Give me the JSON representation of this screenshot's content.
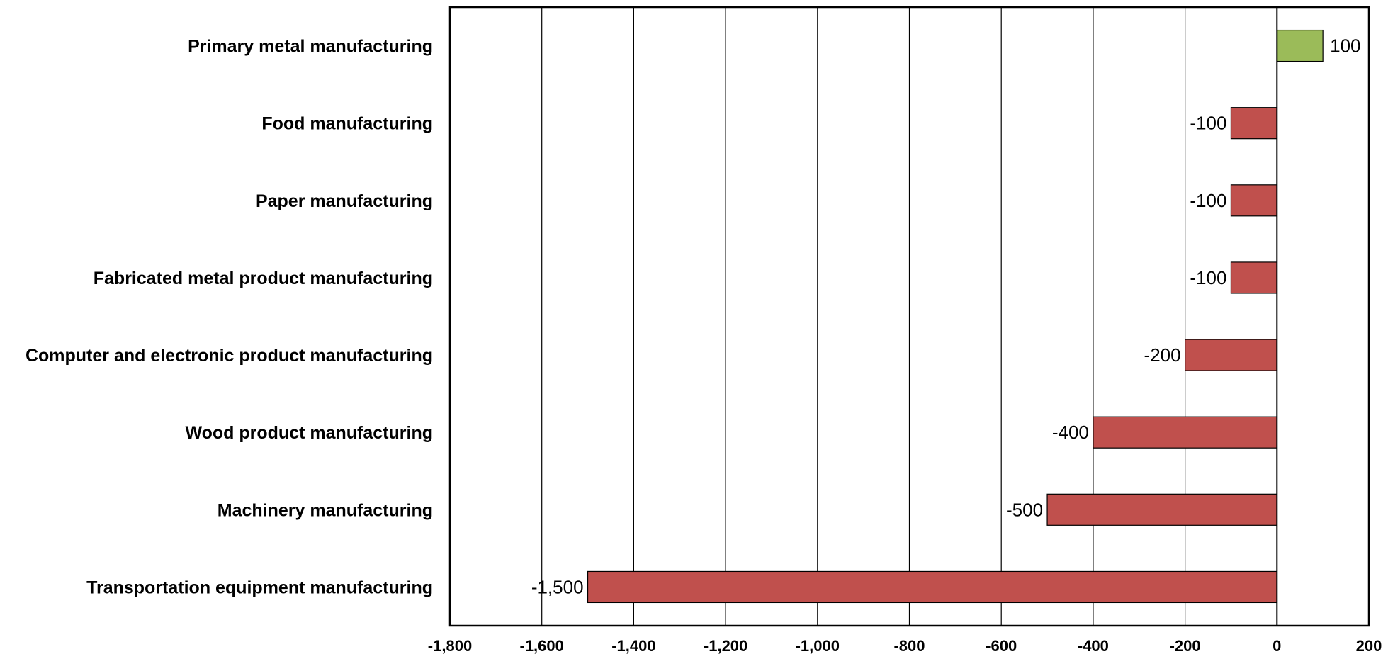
{
  "chart_data": {
    "type": "bar",
    "orientation": "horizontal",
    "categories": [
      "Primary metal manufacturing",
      "Food manufacturing",
      "Paper manufacturing",
      "Fabricated metal product manufacturing",
      "Computer and electronic product manufacturing",
      "Wood product manufacturing",
      "Machinery manufacturing",
      "Transportation equipment manufacturing"
    ],
    "values": [
      100,
      -100,
      -100,
      -100,
      -200,
      -400,
      -500,
      -1500
    ],
    "data_labels": [
      "100",
      "-100",
      "-100",
      "-100",
      "-200",
      "-400",
      "-500",
      "-1,500"
    ],
    "xlim": [
      -1800,
      200
    ],
    "x_ticks": [
      -1800,
      -1600,
      -1400,
      -1200,
      -1000,
      -800,
      -600,
      -400,
      -200,
      0,
      200
    ],
    "x_tick_labels": [
      "-1,800",
      "-1,600",
      "-1,400",
      "-1,200",
      "-1,000",
      "-800",
      "-600",
      "-400",
      "-200",
      "0",
      "200"
    ],
    "grid": "vertical",
    "colors": {
      "positive": "#9bbb59",
      "negative": "#c0504d",
      "grid": "#000000"
    },
    "title": "",
    "xlabel": "",
    "ylabel": ""
  }
}
